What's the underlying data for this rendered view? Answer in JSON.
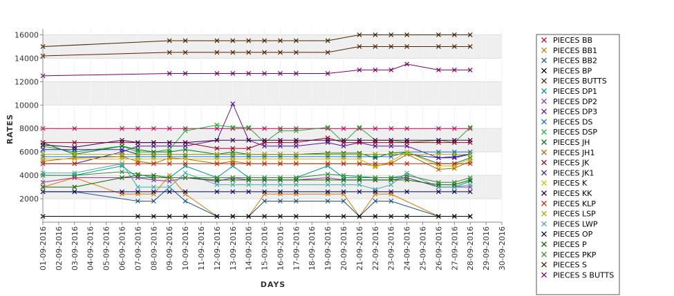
{
  "chart_data": {
    "type": "line",
    "title": "",
    "xlabel": "DAYS",
    "ylabel": "RATES",
    "ylim": [
      0,
      16500
    ],
    "yticks": [
      2000,
      4000,
      6000,
      8000,
      10000,
      12000,
      14000,
      16000
    ],
    "grid": "horizontal bands",
    "legend_placement": "right",
    "x": [
      "01-09-2016",
      "02-09-2016",
      "03-09-2016",
      "04-09-2016",
      "05-09-2016",
      "06-09-2016",
      "07-09-2016",
      "08-09-2016",
      "09-09-2016",
      "10-09-2016",
      "11-09-2016",
      "12-09-2016",
      "13-09-2016",
      "14-09-2016",
      "15-09-2016",
      "16-09-2016",
      "17-09-2016",
      "18-09-2016",
      "19-09-2016",
      "20-09-2016",
      "21-09-2016",
      "22-09-2016",
      "23-09-2016",
      "24-09-2016",
      "25-09-2016",
      "26-09-2016",
      "27-09-2016",
      "28-09-2016",
      "29-09-2016",
      "30-09-2016"
    ],
    "series": [
      {
        "name": "PIECES BB",
        "color": "#cc0055",
        "values": [
          8000,
          null,
          8000,
          null,
          null,
          8000,
          8000,
          8000,
          8000,
          8000,
          null,
          8000,
          8000,
          8000,
          8000,
          8000,
          8000,
          null,
          8000,
          8000,
          8000,
          8000,
          8000,
          8000,
          null,
          8000,
          8000,
          8000,
          null,
          null
        ]
      },
      {
        "name": "PIECES BB1",
        "color": "#dd7700",
        "values": [
          3000,
          null,
          3800,
          null,
          null,
          2400,
          2400,
          2400,
          4000,
          2400,
          null,
          500,
          500,
          500,
          2400,
          2400,
          2400,
          null,
          2400,
          2400,
          500,
          2400,
          2400,
          null,
          null,
          500,
          500,
          500,
          null,
          null
        ]
      },
      {
        "name": "PIECES BB2",
        "color": "#1a5588",
        "values": [
          2600,
          null,
          2600,
          null,
          null,
          null,
          1800,
          1800,
          3000,
          1800,
          null,
          500,
          500,
          500,
          1800,
          1800,
          1800,
          null,
          1800,
          1800,
          500,
          1800,
          1800,
          null,
          null,
          500,
          500,
          500,
          null,
          null
        ]
      },
      {
        "name": "PIECES BP",
        "color": "#000000",
        "values": [
          500,
          null,
          null,
          null,
          null,
          null,
          500,
          500,
          500,
          500,
          null,
          500,
          500,
          500,
          500,
          500,
          500,
          null,
          500,
          500,
          500,
          500,
          500,
          500,
          null,
          500,
          500,
          500,
          null,
          null
        ]
      },
      {
        "name": "PIECES BUTTS",
        "color": "#552200",
        "values": [
          14200,
          null,
          null,
          null,
          null,
          null,
          null,
          null,
          14500,
          14500,
          null,
          14500,
          14500,
          14500,
          14500,
          14500,
          14500,
          null,
          14500,
          null,
          15000,
          15000,
          15000,
          15000,
          null,
          15000,
          15000,
          15000,
          null,
          null
        ]
      },
      {
        "name": "PIECES DP1",
        "color": "#009988",
        "values": [
          4000,
          null,
          4000,
          null,
          null,
          4800,
          3800,
          3800,
          3800,
          4800,
          null,
          3800,
          4800,
          3800,
          3800,
          3800,
          3800,
          null,
          4800,
          3800,
          3800,
          3800,
          3800,
          3800,
          null,
          3000,
          3000,
          3500,
          null,
          null
        ]
      },
      {
        "name": "PIECES DP2",
        "color": "#993399",
        "values": [
          3400,
          null,
          3800,
          null,
          null,
          null,
          3800,
          3600,
          3500,
          3800,
          null,
          3500,
          3800,
          3600,
          3600,
          3600,
          3600,
          null,
          3800,
          3600,
          3600,
          3600,
          3600,
          3800,
          null,
          3000,
          3000,
          3000,
          null,
          null
        ]
      },
      {
        "name": "PIECES DP3",
        "color": "#551199",
        "values": [
          5000,
          null,
          5000,
          null,
          null,
          6000,
          6500,
          6500,
          6500,
          6500,
          null,
          7000,
          10100,
          7000,
          6500,
          6500,
          6500,
          null,
          6800,
          6500,
          6800,
          6500,
          6500,
          6500,
          null,
          5500,
          5500,
          5800,
          null,
          null
        ]
      },
      {
        "name": "PIECES DS",
        "color": "#1166cc",
        "values": [
          5600,
          null,
          5600,
          null,
          null,
          5600,
          5600,
          5600,
          5600,
          5600,
          null,
          5600,
          5600,
          5600,
          5600,
          5600,
          5600,
          null,
          5600,
          5600,
          5600,
          5600,
          5600,
          6000,
          null,
          6000,
          6000,
          6000,
          null,
          null
        ]
      },
      {
        "name": "PIECES DSP",
        "color": "#22aa33",
        "values": [
          6500,
          null,
          6000,
          null,
          null,
          6500,
          6000,
          6000,
          6200,
          7800,
          null,
          8300,
          8100,
          8100,
          6800,
          7800,
          7800,
          null,
          8100,
          6800,
          8100,
          7000,
          7000,
          6800,
          null,
          7000,
          6800,
          8100,
          null,
          null
        ]
      },
      {
        "name": "PIECES JH",
        "color": "#007722",
        "values": [
          6800,
          null,
          5800,
          null,
          null,
          6500,
          6200,
          6000,
          6000,
          6200,
          null,
          5800,
          6000,
          5800,
          5800,
          5800,
          5800,
          null,
          5900,
          5900,
          5900,
          5500,
          5900,
          6000,
          null,
          5000,
          5000,
          5500,
          null,
          null
        ]
      },
      {
        "name": "PIECES JH1",
        "color": "#aa6600",
        "values": [
          5200,
          null,
          5500,
          null,
          null,
          5600,
          5200,
          5000,
          5500,
          5400,
          null,
          5000,
          5200,
          5000,
          5000,
          5000,
          5000,
          null,
          5000,
          5000,
          5000,
          4800,
          5000,
          5800,
          null,
          4500,
          4600,
          5200,
          null,
          null
        ]
      },
      {
        "name": "PIECES JK",
        "color": "#990022",
        "values": [
          6800,
          null,
          6800,
          null,
          null,
          6800,
          6800,
          6800,
          6800,
          6800,
          null,
          6300,
          6300,
          6300,
          6800,
          6800,
          6800,
          null,
          7200,
          6800,
          6800,
          6800,
          6800,
          6800,
          null,
          6800,
          6800,
          6800,
          null,
          null
        ]
      },
      {
        "name": "PIECES JK1",
        "color": "#2222aa",
        "values": [
          6200,
          null,
          6200,
          null,
          null,
          6200,
          5800,
          5800,
          5800,
          5800,
          null,
          5800,
          5800,
          5800,
          5800,
          5800,
          5800,
          null,
          5800,
          5800,
          5800,
          5800,
          5800,
          5800,
          null,
          5500,
          5600,
          5800,
          null,
          null
        ]
      },
      {
        "name": "PIECES K",
        "color": "#ccbb00",
        "values": [
          5400,
          null,
          5400,
          null,
          null,
          5400,
          5400,
          5400,
          5400,
          5400,
          null,
          5400,
          5400,
          5400,
          5400,
          5400,
          5400,
          null,
          5400,
          5400,
          5400,
          4700,
          5200,
          6000,
          null,
          4800,
          4800,
          5400,
          null,
          null
        ]
      },
      {
        "name": "PIECES KK",
        "color": "#330044",
        "values": [
          6600,
          null,
          6400,
          null,
          null,
          7000,
          6800,
          6800,
          6800,
          6800,
          null,
          7000,
          7000,
          7000,
          7000,
          7000,
          7000,
          null,
          7000,
          7000,
          7000,
          7000,
          7000,
          7000,
          null,
          7000,
          7000,
          7000,
          null,
          null
        ]
      },
      {
        "name": "PIECES KLP",
        "color": "#cc2211",
        "values": [
          5000,
          null,
          5000,
          null,
          null,
          5000,
          5000,
          5000,
          5000,
          5000,
          null,
          5000,
          5000,
          5000,
          5000,
          5000,
          5000,
          null,
          5000,
          5000,
          5000,
          5000,
          5000,
          5000,
          null,
          5000,
          5000,
          5000,
          null,
          null
        ]
      },
      {
        "name": "PIECES LSP",
        "color": "#99aa00",
        "values": [
          5800,
          null,
          5800,
          null,
          null,
          5800,
          5800,
          5800,
          5800,
          5800,
          null,
          5800,
          5800,
          5800,
          5800,
          5800,
          5800,
          null,
          5800,
          5800,
          5800,
          5800,
          5800,
          5800,
          null,
          5800,
          5800,
          5800,
          null,
          null
        ]
      },
      {
        "name": "PIECES LWP",
        "color": "#44aaaa",
        "values": [
          4200,
          null,
          4200,
          null,
          null,
          5000,
          3000,
          3000,
          3000,
          4200,
          null,
          3200,
          3200,
          3200,
          3200,
          3200,
          3200,
          null,
          3200,
          3200,
          3200,
          2800,
          3200,
          4200,
          null,
          3000,
          3000,
          3200,
          null,
          null
        ]
      },
      {
        "name": "PIECES OP",
        "color": "#000055",
        "values": [
          2600,
          null,
          2600,
          null,
          null,
          2600,
          2600,
          2600,
          2600,
          2600,
          null,
          2600,
          2600,
          2600,
          2600,
          2600,
          2600,
          null,
          2600,
          2600,
          2600,
          2600,
          2600,
          2600,
          null,
          2600,
          2600,
          2600,
          null,
          null
        ]
      },
      {
        "name": "PIECES P",
        "color": "#116600",
        "values": [
          3000,
          null,
          3000,
          null,
          null,
          3800,
          4000,
          4000,
          3800,
          3800,
          null,
          3600,
          3600,
          3600,
          3600,
          3600,
          3600,
          null,
          3600,
          3600,
          3600,
          3600,
          3600,
          3600,
          null,
          3200,
          3200,
          3600,
          null,
          null
        ]
      },
      {
        "name": "PIECES PKP",
        "color": "#338833",
        "values": [
          4000,
          null,
          4000,
          null,
          null,
          4300,
          4100,
          3800,
          3800,
          3800,
          null,
          3800,
          3800,
          3800,
          3800,
          3800,
          3800,
          null,
          4100,
          4000,
          3900,
          3800,
          3800,
          4000,
          null,
          3400,
          3400,
          3800,
          null,
          null
        ]
      },
      {
        "name": "PIECES S",
        "color": "#442200",
        "values": [
          15000,
          null,
          null,
          null,
          null,
          null,
          null,
          null,
          15500,
          15500,
          null,
          15500,
          15500,
          15500,
          15500,
          15500,
          15500,
          null,
          15500,
          null,
          16000,
          16000,
          16000,
          16000,
          null,
          16000,
          16000,
          16000,
          null,
          null
        ]
      },
      {
        "name": "PIECES S BUTTS",
        "color": "#770066",
        "values": [
          12500,
          null,
          null,
          null,
          null,
          null,
          null,
          null,
          12700,
          12700,
          null,
          12700,
          12700,
          12700,
          12700,
          12700,
          12700,
          null,
          12700,
          null,
          13000,
          13000,
          13000,
          13500,
          null,
          13000,
          13000,
          13000,
          null,
          null
        ]
      }
    ]
  }
}
